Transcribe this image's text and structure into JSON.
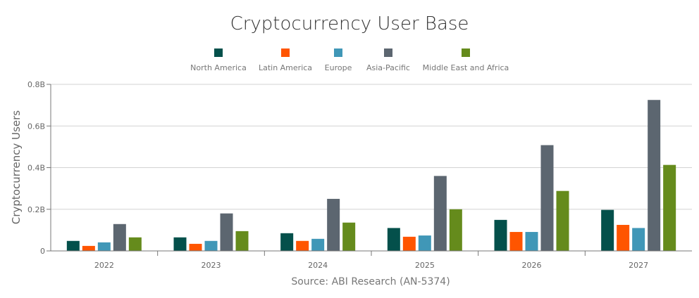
{
  "chart_data": {
    "type": "bar",
    "title": "Cryptocurrency User Base",
    "ylabel": "Cryptocurrency Users",
    "xlabel": "",
    "source": "Source: ABI Research (AN-5374)",
    "categories": [
      "2022",
      "2023",
      "2024",
      "2025",
      "2026",
      "2027"
    ],
    "ylim": [
      0,
      0.8
    ],
    "yticks": [
      0,
      0.2,
      0.4,
      0.6,
      0.8
    ],
    "ytick_labels": [
      "0",
      "0.2B",
      "0.4B",
      "0.6B",
      "0.8B"
    ],
    "grid": true,
    "legend_position": "top",
    "series": [
      {
        "name": "North America",
        "color": "#04504b",
        "values": [
          0.048,
          0.065,
          0.085,
          0.11,
          0.149,
          0.197
        ]
      },
      {
        "name": "Latin America",
        "color": "#ff5500",
        "values": [
          0.024,
          0.034,
          0.048,
          0.068,
          0.091,
          0.125
        ]
      },
      {
        "name": "Europe",
        "color": "#4097b7",
        "values": [
          0.041,
          0.048,
          0.058,
          0.074,
          0.091,
          0.11
        ]
      },
      {
        "name": "Asia-Pacific",
        "color": "#5c6670",
        "values": [
          0.129,
          0.18,
          0.25,
          0.36,
          0.508,
          0.725
        ]
      },
      {
        "name": "Middle East and Africa",
        "color": "#658b1c",
        "values": [
          0.065,
          0.095,
          0.136,
          0.2,
          0.288,
          0.413
        ]
      }
    ]
  }
}
